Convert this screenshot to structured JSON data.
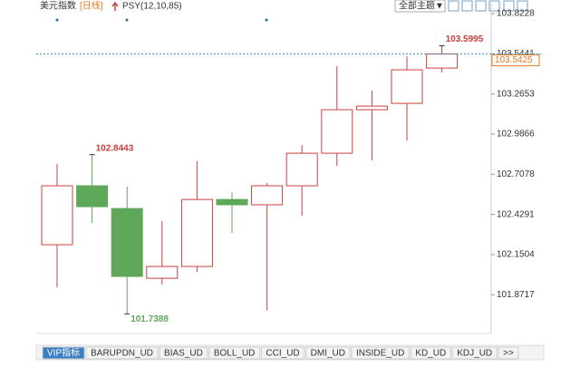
{
  "header": {
    "symbol": "美元指数",
    "period": "[日线]",
    "indicator": "PSY(12,10,85)",
    "theme_button": "全部主题▼"
  },
  "chart_data": {
    "type": "candlestick",
    "candles": [
      {
        "open": 102.219,
        "high": 102.779,
        "low": 101.923,
        "close": 102.628
      },
      {
        "open": 102.628,
        "high": 102.8443,
        "low": 102.37,
        "close": 102.483
      },
      {
        "open": 102.47,
        "high": 102.622,
        "low": 101.7388,
        "close": 101.999
      },
      {
        "open": 101.986,
        "high": 102.383,
        "low": 101.942,
        "close": 102.068
      },
      {
        "open": 102.068,
        "high": 102.798,
        "low": 102.03,
        "close": 102.533
      },
      {
        "open": 102.533,
        "high": 102.584,
        "low": 102.301,
        "close": 102.496
      },
      {
        "open": 102.496,
        "high": 102.647,
        "low": 101.766,
        "close": 102.628
      },
      {
        "open": 102.628,
        "high": 102.911,
        "low": 102.42,
        "close": 102.854
      },
      {
        "open": 102.854,
        "high": 103.458,
        "low": 102.766,
        "close": 103.156
      },
      {
        "open": 103.156,
        "high": 103.288,
        "low": 102.804,
        "close": 103.181
      },
      {
        "open": 103.2,
        "high": 103.527,
        "low": 102.942,
        "close": 103.433
      },
      {
        "open": 103.445,
        "high": 103.5995,
        "low": 103.414,
        "close": 103.5425
      }
    ],
    "up_color": "#c9413e",
    "down_color": "#5fa85a",
    "ylim": [
      101.603,
      103.867
    ],
    "yticks": [
      103.8228,
      103.5441,
      103.2653,
      102.9866,
      102.7078,
      102.4291,
      102.1504,
      101.8717
    ]
  },
  "tabs": [
    "VIP指标",
    "BARUPDN_UD",
    "BIAS_UD",
    "BOLL_UD",
    "CCI_UD",
    "DMI_UD",
    "INSIDE_UD",
    "KD_UD",
    "KDJ_UD",
    ">>"
  ]
}
